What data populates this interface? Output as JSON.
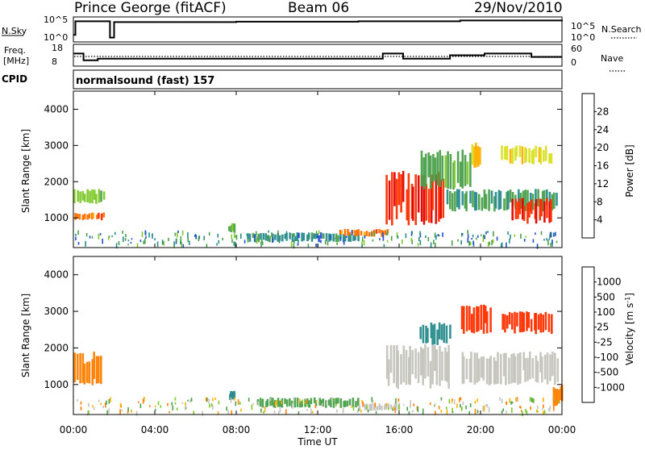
{
  "header": {
    "station": "Prince George (fitACF)",
    "beam": "Beam 06",
    "date": "29/Nov/2010"
  },
  "noise_panel": {
    "left_label": "N.Sky",
    "right_label": "N.Search",
    "left_ticks": [
      "10^5",
      "10^0"
    ],
    "right_ticks": [
      "10^5",
      "10^0"
    ]
  },
  "freq_panel": {
    "left_label": "Freq.",
    "left_unit": "[MHz]",
    "right_label": "Nave",
    "left_ticks": [
      "18",
      "8"
    ],
    "right_ticks": [
      "60",
      "0"
    ]
  },
  "cpid": {
    "label": "CPID",
    "program": "normalsound (fast) 157"
  },
  "time_axis": {
    "title": "Time UT",
    "ticks": [
      "00:00",
      "04:00",
      "08:00",
      "12:00",
      "16:00",
      "20:00",
      "00:00"
    ]
  },
  "range_axis": {
    "title": "Slant Range [km]",
    "ticks": [
      "1000",
      "2000",
      "3000",
      "4000"
    ]
  },
  "power_bar": {
    "title": "Power [dB]",
    "ticks": [
      "4",
      "8",
      "12",
      "16",
      "20",
      "24",
      "28"
    ],
    "colors": [
      "#1010ff",
      "#204ecc",
      "#2a8c8c",
      "#4aa04a",
      "#7ec82a",
      "#d8e020",
      "#ffb000",
      "#ff7000",
      "#ff3000",
      "#e00000"
    ]
  },
  "velocity_bar": {
    "title": "Velocity [m s",
    "title_sup": "-1",
    "ticks": [
      "1000",
      "500",
      "100",
      "25",
      "-25",
      "-100",
      "-500",
      "-1000"
    ],
    "colors": [
      "#1a3aa8",
      "#2a8c8c",
      "#4aa04a",
      "#7ec82a",
      "#c4c4bc",
      "#ffb000",
      "#ff8000",
      "#ff3000",
      "#e00000"
    ]
  },
  "chart_data": [
    {
      "type": "heatmap",
      "title": "Power [dB]",
      "xlabel": "Time UT",
      "ylabel": "Slant Range [km]",
      "x_range_hours": [
        0,
        24
      ],
      "ylim": [
        180,
        4500
      ],
      "colorbar_range": [
        0,
        32
      ],
      "echoes": [
        {
          "t0": 0.0,
          "t1": 1.5,
          "r0": 1800,
          "r1": 1400,
          "value": 14
        },
        {
          "t0": 0.0,
          "t1": 1.5,
          "r0": 1150,
          "r1": 950,
          "value": 24
        },
        {
          "t0": 7.6,
          "t1": 7.9,
          "r0": 850,
          "r1": 600,
          "value": 12
        },
        {
          "t0": 8.5,
          "t1": 14.0,
          "r0": 600,
          "r1": 350,
          "value": 8
        },
        {
          "t0": 13.0,
          "t1": 15.5,
          "r0": 700,
          "r1": 500,
          "value": 24
        },
        {
          "t0": 15.3,
          "t1": 18.2,
          "r0": 2300,
          "r1": 800,
          "value": 28
        },
        {
          "t0": 17.0,
          "t1": 19.5,
          "r0": 2900,
          "r1": 1800,
          "value": 12
        },
        {
          "t0": 19.5,
          "t1": 20.0,
          "r0": 3100,
          "r1": 2400,
          "value": 20
        },
        {
          "t0": 18.3,
          "t1": 23.8,
          "r0": 1800,
          "r1": 1200,
          "value": 10
        },
        {
          "t0": 21.5,
          "t1": 23.5,
          "r0": 1550,
          "r1": 850,
          "value": 28
        },
        {
          "t0": 21.0,
          "t1": 23.5,
          "r0": 3000,
          "r1": 2500,
          "value": 18
        }
      ]
    },
    {
      "type": "heatmap",
      "title": "Velocity [m s-1]",
      "xlabel": "Time UT",
      "ylabel": "Slant Range [km]",
      "x_range_hours": [
        0,
        24
      ],
      "ylim": [
        180,
        4500
      ],
      "colorbar_ticks": [
        1000,
        500,
        100,
        25,
        -25,
        -100,
        -500,
        -1000
      ],
      "echoes": [
        {
          "t0": 0.0,
          "t1": 1.4,
          "r0": 1900,
          "r1": 1000,
          "value": -100
        },
        {
          "t0": 7.6,
          "t1": 7.9,
          "r0": 850,
          "r1": 600,
          "value": 500
        },
        {
          "t0": 9.0,
          "t1": 14.0,
          "r0": 650,
          "r1": 380,
          "value": 100
        },
        {
          "t0": 14.0,
          "t1": 16.0,
          "r0": 500,
          "r1": 300,
          "value": 0
        },
        {
          "t0": 15.3,
          "t1": 18.5,
          "r0": 2100,
          "r1": 900,
          "value": 0
        },
        {
          "t0": 17.0,
          "t1": 18.5,
          "r0": 2700,
          "r1": 2100,
          "value": 500
        },
        {
          "t0": 19.0,
          "t1": 20.5,
          "r0": 3200,
          "r1": 2400,
          "value": -500
        },
        {
          "t0": 19.0,
          "t1": 23.8,
          "r0": 1900,
          "r1": 1000,
          "value": 0
        },
        {
          "t0": 21.0,
          "t1": 23.5,
          "r0": 3000,
          "r1": 2400,
          "value": -500
        },
        {
          "t0": 23.5,
          "t1": 24.0,
          "r0": 1000,
          "r1": 400,
          "value": -100
        }
      ]
    },
    {
      "type": "line",
      "title": "N.Sky",
      "series": [
        {
          "values": [
            1,
            4.5,
            0.3,
            4.3,
            4.4,
            4.5,
            4.7,
            4.9
          ]
        }
      ],
      "x_hours": [
        0,
        0.1,
        1.8,
        2.0,
        8,
        14,
        19,
        24
      ]
    },
    {
      "type": "line",
      "title": "Freq. [MHz]",
      "series": [
        {
          "values": [
            14,
            10,
            11,
            11,
            14,
            11,
            13,
            14,
            12
          ]
        }
      ],
      "x_hours": [
        0,
        0.5,
        1.2,
        14.8,
        15.2,
        16.2,
        18.5,
        20.2,
        22.5
      ]
    }
  ]
}
